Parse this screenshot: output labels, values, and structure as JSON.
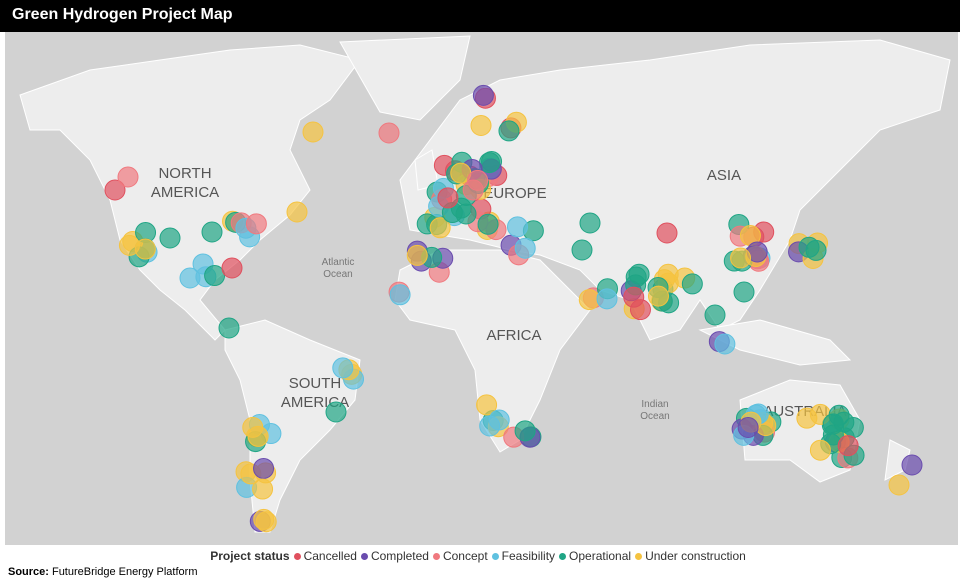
{
  "header": {
    "title": "Green Hydrogen Project Map"
  },
  "map_labels": {
    "north_america": [
      "NORTH",
      "AMERICA"
    ],
    "south_america": [
      "SOUTH",
      "AMERICA"
    ],
    "europe": "EUROPE",
    "asia": "ASIA",
    "africa": "AFRICA",
    "australia": "AUSTRALIA",
    "atlantic": [
      "Atlantic",
      "Ocean"
    ],
    "indian": [
      "Indian",
      "Ocean"
    ]
  },
  "legend": {
    "title": "Project status",
    "items": [
      {
        "label": "Cancelled",
        "color": "#e0505e"
      },
      {
        "label": "Completed",
        "color": "#6a4cae"
      },
      {
        "label": "Concept",
        "color": "#f0797f"
      },
      {
        "label": "Feasibility",
        "color": "#5fc1e0"
      },
      {
        "label": "Operational",
        "color": "#1fa585"
      },
      {
        "label": "Under construction",
        "color": "#f5c340"
      }
    ]
  },
  "source": {
    "label": "Source:",
    "text": "FutureBridge Energy Platform"
  }
}
